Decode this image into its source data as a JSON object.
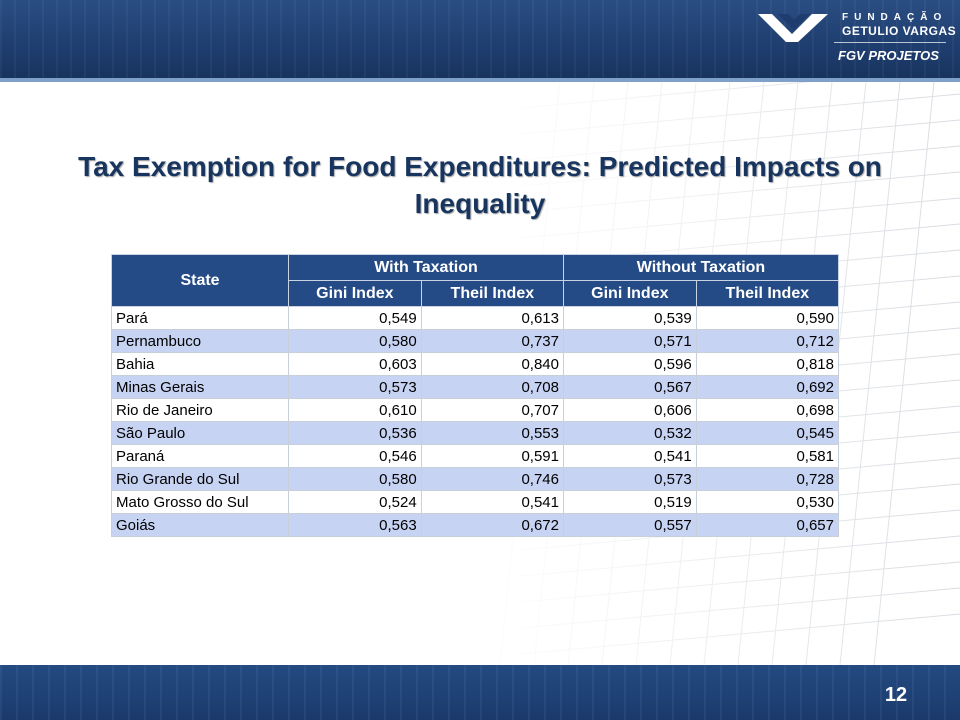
{
  "header": {
    "logo": {
      "line1": "FUNDAÇÃO",
      "line2": "GETULIO VARGAS",
      "line3": "FGV PROJETOS"
    }
  },
  "slide": {
    "title": "Tax Exemption for Food Expenditures: Predicted Impacts on Inequality",
    "page_number": "12"
  },
  "table": {
    "header_state": "State",
    "group_with": "With Taxation",
    "group_without": "Without Taxation",
    "sub_gini_1": "Gini Index",
    "sub_theil_1": "Theil Index",
    "sub_gini_2": "Gini Index",
    "sub_theil_2": "Theil Index",
    "rows": [
      {
        "state": "Pará",
        "with_gini": "0,549",
        "with_theil": "0,613",
        "without_gini": "0,539",
        "without_theil": "0,590"
      },
      {
        "state": "Pernambuco",
        "with_gini": "0,580",
        "with_theil": "0,737",
        "without_gini": "0,571",
        "without_theil": "0,712"
      },
      {
        "state": "Bahia",
        "with_gini": "0,603",
        "with_theil": "0,840",
        "without_gini": "0,596",
        "without_theil": "0,818"
      },
      {
        "state": "Minas Gerais",
        "with_gini": "0,573",
        "with_theil": "0,708",
        "without_gini": "0,567",
        "without_theil": "0,692"
      },
      {
        "state": "Rio de Janeiro",
        "with_gini": "0,610",
        "with_theil": "0,707",
        "without_gini": "0,606",
        "without_theil": "0,698"
      },
      {
        "state": "São Paulo",
        "with_gini": "0,536",
        "with_theil": "0,553",
        "without_gini": "0,532",
        "without_theil": "0,545"
      },
      {
        "state": "Paraná",
        "with_gini": "0,546",
        "with_theil": "0,591",
        "without_gini": "0,541",
        "without_theil": "0,581"
      },
      {
        "state": "Rio Grande do Sul",
        "with_gini": "0,580",
        "with_theil": "0,746",
        "without_gini": "0,573",
        "without_theil": "0,728"
      },
      {
        "state": "Mato Grosso do Sul",
        "with_gini": "0,524",
        "with_theil": "0,541",
        "without_gini": "0,519",
        "without_theil": "0,530"
      },
      {
        "state": "Goiás",
        "with_gini": "0,563",
        "with_theil": "0,672",
        "without_gini": "0,557",
        "without_theil": "0,657"
      }
    ]
  },
  "colors": {
    "header_blue": "#1e3d6e",
    "title_blue": "#17355f",
    "table_header": "#254b86",
    "row_stripe": "#c7d3f2"
  }
}
